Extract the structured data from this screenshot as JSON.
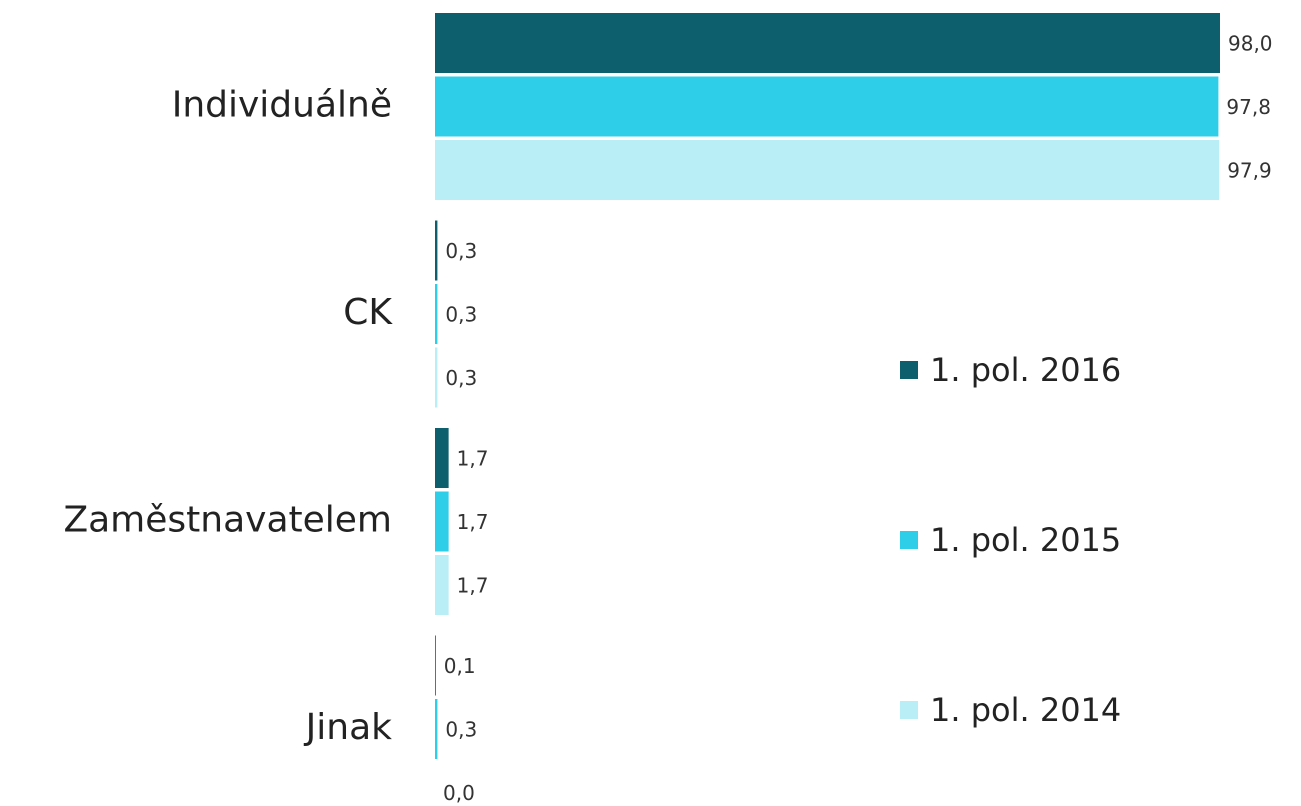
{
  "chart_data": {
    "type": "bar",
    "orientation": "horizontal",
    "categories": [
      "Individuálně",
      "CK",
      "Zaměstnavatelem",
      "Jinak"
    ],
    "series": [
      {
        "name": "1. pol. 2016",
        "color": "#0e5f6e",
        "values": [
          98.0,
          0.3,
          1.7,
          0.1
        ],
        "value_labels": [
          "98,0",
          "0,3",
          "1,7",
          "0,1"
        ]
      },
      {
        "name": "1. pol. 2015",
        "color": "#2ecde8",
        "values": [
          97.8,
          0.3,
          1.7,
          0.3
        ],
        "value_labels": [
          "97,8",
          "0,3",
          "1,7",
          "0,3"
        ]
      },
      {
        "name": "1. pol. 2014",
        "color": "#b9eef7",
        "values": [
          97.9,
          0.3,
          1.7,
          0.0
        ],
        "value_labels": [
          "97,9",
          "0,3",
          "1,7",
          "0,0"
        ]
      }
    ]
  }
}
